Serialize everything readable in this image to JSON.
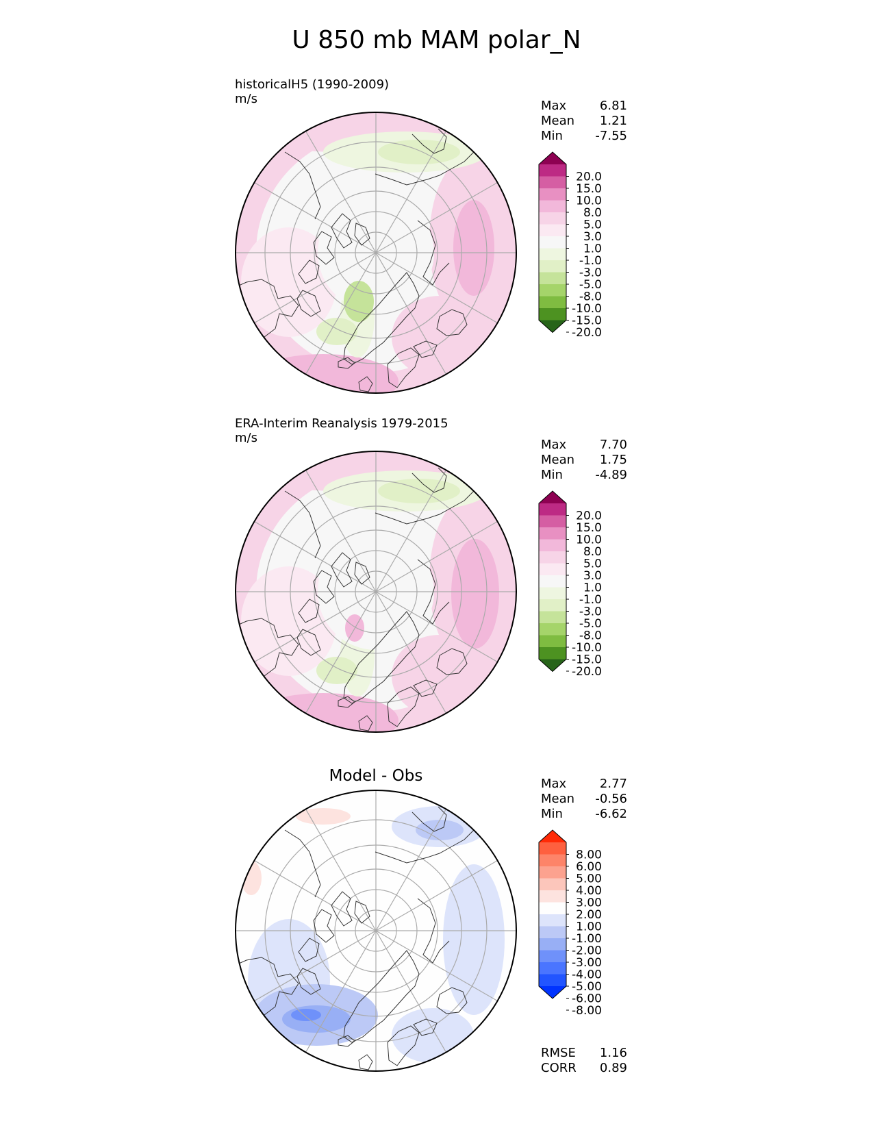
{
  "figure": {
    "title": "U 850 mb MAM polar_N"
  },
  "colors": {
    "pinkgreen": [
      "#276419",
      "#4d9221",
      "#7fbc41",
      "#a5d46a",
      "#c5e39a",
      "#e1f0c7",
      "#eef6e0",
      "#f7f7f7",
      "#fbe9f2",
      "#f7d4e7",
      "#f2b8da",
      "#e890c2",
      "#d55ea3",
      "#bd2a84",
      "#8e0152"
    ],
    "bluered": [
      "#0033ff",
      "#2255ff",
      "#4a75ff",
      "#6f91fa",
      "#98aff5",
      "#bcc9f6",
      "#dde4fb",
      "#fefefe",
      "#fde3df",
      "#fcc6bb",
      "#fca28f",
      "#fd8469",
      "#fe603f",
      "#ff2a06"
    ],
    "land": "#333333",
    "grid": "#aaaaaa"
  },
  "panels": [
    {
      "id": "model",
      "title": "historicalH5 (1990-2009)",
      "units": "m/s",
      "center_title": "",
      "stats": [
        {
          "label": "Max",
          "value": "6.81"
        },
        {
          "label": "Mean",
          "value": "1.21"
        },
        {
          "label": "Min",
          "value": "-7.55"
        }
      ],
      "extra_stats": [],
      "cmap": "pinkgreen",
      "colorbar_ticks": [
        "20.0",
        "15.0",
        "10.0",
        "8.0",
        "5.0",
        "3.0",
        "1.0",
        "-1.0",
        "-3.0",
        "-5.0",
        "-8.0",
        "-10.0",
        "-15.0",
        "-20.0"
      ]
    },
    {
      "id": "obs",
      "title": "ERA-Interim Reanalysis 1979-2015",
      "units": "m/s",
      "center_title": "",
      "stats": [
        {
          "label": "Max",
          "value": "7.70"
        },
        {
          "label": "Mean",
          "value": "1.75"
        },
        {
          "label": "Min",
          "value": "-4.89"
        }
      ],
      "extra_stats": [],
      "cmap": "pinkgreen",
      "colorbar_ticks": [
        "20.0",
        "15.0",
        "10.0",
        "8.0",
        "5.0",
        "3.0",
        "1.0",
        "-1.0",
        "-3.0",
        "-5.0",
        "-8.0",
        "-10.0",
        "-15.0",
        "-20.0"
      ]
    },
    {
      "id": "diff",
      "title": "",
      "units": "",
      "center_title": "Model - Obs",
      "stats": [
        {
          "label": "Max",
          "value": "2.77"
        },
        {
          "label": "Mean",
          "value": "-0.56"
        },
        {
          "label": "Min",
          "value": "-6.62"
        }
      ],
      "extra_stats": [
        {
          "label": "RMSE",
          "value": "1.16"
        },
        {
          "label": "CORR",
          "value": "0.89"
        }
      ],
      "cmap": "bluered",
      "colorbar_ticks": [
        "8.00",
        "6.00",
        "5.00",
        "4.00",
        "3.00",
        "2.00",
        "1.00",
        "-1.00",
        "-2.00",
        "-3.00",
        "-4.00",
        "-5.00",
        "-6.00",
        "-8.00"
      ]
    }
  ],
  "chart_data": [
    {
      "type": "heatmap",
      "projection": "north polar stereographic",
      "title": "historicalH5 (1990-2009)",
      "units": "m/s",
      "summary": {
        "max": 6.81,
        "mean": 1.21,
        "min": -7.55
      },
      "colorbar_levels": [
        -20,
        -15,
        -10,
        -8,
        -5,
        -3,
        -1,
        1,
        3,
        5,
        8,
        10,
        15,
        20
      ]
    },
    {
      "type": "heatmap",
      "projection": "north polar stereographic",
      "title": "ERA-Interim Reanalysis 1979-2015",
      "units": "m/s",
      "summary": {
        "max": 7.7,
        "mean": 1.75,
        "min": -4.89
      },
      "colorbar_levels": [
        -20,
        -15,
        -10,
        -8,
        -5,
        -3,
        -1,
        1,
        3,
        5,
        8,
        10,
        15,
        20
      ]
    },
    {
      "type": "heatmap",
      "projection": "north polar stereographic",
      "title": "Model - Obs",
      "summary": {
        "max": 2.77,
        "mean": -0.56,
        "min": -6.62,
        "rmse": 1.16,
        "corr": 0.89
      },
      "colorbar_levels": [
        -8,
        -6,
        -5,
        -4,
        -3,
        -2,
        -1,
        1,
        2,
        3,
        4,
        5,
        6,
        8
      ]
    }
  ]
}
